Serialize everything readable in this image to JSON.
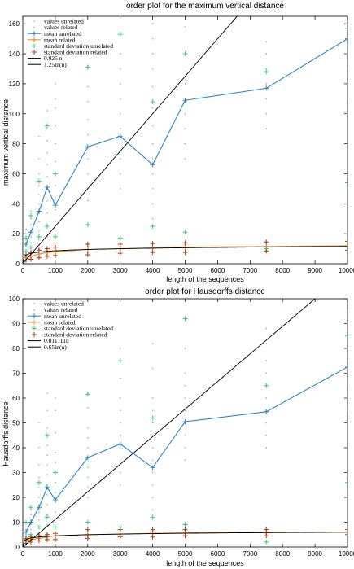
{
  "chart_data": [
    {
      "type": "line",
      "title": "order plot for the maximum vertical distance",
      "xlabel": "length of the sequences",
      "ylabel": "maximum vertical distance",
      "xlim": [
        0,
        10000
      ],
      "ylim": [
        0,
        165
      ],
      "xticks": [
        0,
        1000,
        2000,
        3000,
        4000,
        5000,
        6000,
        7000,
        8000,
        9000,
        10000
      ],
      "yticks": [
        0,
        20,
        40,
        60,
        80,
        100,
        120,
        140,
        160
      ],
      "x": [
        100,
        250,
        500,
        750,
        1000,
        2000,
        3000,
        4000,
        5000,
        7500,
        10000
      ],
      "series": [
        {
          "name": "values unrelated",
          "kind": "dots",
          "color": "#9ab8d0",
          "values": [
            [
              3,
              6,
              9,
              12,
              14,
              16,
              18,
              20,
              23
            ],
            [
              6,
              10,
              14,
              18,
              22,
              26,
              30,
              35
            ],
            [
              10,
              16,
              22,
              28,
              34,
              40,
              46,
              52,
              60,
              70,
              85
            ],
            [
              18,
              26,
              34,
              42,
              50,
              58,
              66,
              74,
              82,
              90,
              102
            ],
            [
              20,
              28,
              36,
              44,
              52,
              60,
              68,
              80,
              92,
              104,
              110,
              120,
              130,
              140,
              150
            ],
            [
              42,
              50,
              60,
              70,
              78,
              86,
              96,
              108,
              118,
              132,
              145
            ],
            [
              50,
              60,
              70,
              80,
              90,
              100,
              110,
              120,
              130,
              140
            ],
            [
              30,
              40,
              50,
              60,
              70,
              80,
              92,
              104,
              118,
              130,
              140,
              150,
              160
            ],
            [
              70,
              80,
              90,
              100,
              110,
              120,
              128,
              158
            ],
            [
              90,
              100,
              110,
              120,
              130,
              140,
              148
            ],
            [
              100,
              110,
              120,
              130,
              140,
              150,
              158,
              163
            ]
          ]
        },
        {
          "name": "values related",
          "kind": "dots",
          "color": "#c9a27a",
          "values": [
            [
              2,
              3,
              4,
              5,
              6
            ],
            [
              3,
              4,
              5,
              6,
              7,
              8
            ],
            [
              4,
              5,
              6,
              7,
              8,
              9,
              10
            ],
            [
              5,
              6,
              7,
              8,
              9,
              10,
              11
            ],
            [
              6,
              7,
              8,
              9,
              10,
              11,
              12
            ],
            [
              7,
              8,
              9,
              10,
              11,
              12,
              13
            ],
            [
              7,
              8,
              9,
              10,
              11,
              12,
              13
            ],
            [
              8,
              9,
              10,
              11,
              12,
              13,
              14
            ],
            [
              8,
              9,
              10,
              11,
              12,
              13,
              14
            ],
            [
              8,
              9,
              10,
              11,
              12,
              13,
              14,
              15
            ],
            [
              9,
              10,
              11,
              12,
              13,
              14
            ]
          ]
        },
        {
          "name": "mean unrelated",
          "kind": "line",
          "color": "#2a88c8",
          "values": [
            13,
            21,
            35,
            51,
            39,
            78,
            85,
            66,
            109,
            117,
            150
          ]
        },
        {
          "name": "mean related",
          "kind": "line",
          "color": "#e8902a",
          "values": [
            4,
            5,
            6.5,
            7.5,
            8,
            9.5,
            10,
            10.5,
            11,
            11.5,
            12
          ]
        },
        {
          "name": "standard deviation unrelated",
          "kind": "plus",
          "color": "#2ed17a",
          "values": [
            [
              8,
              17
            ],
            [
              11,
              32
            ],
            [
              18,
              55
            ],
            [
              25,
              92
            ],
            [
              18,
              60
            ],
            [
              26,
              131
            ],
            [
              17,
              153
            ],
            [
              25,
              108
            ],
            [
              21,
              140
            ],
            [
              10,
              128
            ],
            [
              54,
              157
            ]
          ]
        },
        {
          "name": "standard deviation related",
          "kind": "plus",
          "color": "#b03a1a",
          "values": [
            [
              2.5,
              6
            ],
            [
              3,
              7.5
            ],
            [
              4,
              9
            ],
            [
              5,
              10
            ],
            [
              5.5,
              11
            ],
            [
              6,
              13
            ],
            [
              7,
              13
            ],
            [
              7.5,
              13.5
            ],
            [
              7.5,
              14
            ],
            [
              8.5,
              14.5
            ],
            [
              9,
              15
            ]
          ]
        },
        {
          "name": "0.025 n",
          "kind": "fn",
          "color": "#000000",
          "a": 0.025,
          "f": "linear"
        },
        {
          "name": "1.25ln(n)",
          "kind": "fn",
          "color": "#000000",
          "a": 1.25,
          "f": "log"
        }
      ]
    },
    {
      "type": "line",
      "title": "order plot for Hausdorffs distance",
      "xlabel": "length of the sequences",
      "ylabel": "Hausdorffs distance",
      "xlim": [
        0,
        10000
      ],
      "ylim": [
        0,
        100
      ],
      "xticks": [
        0,
        1000,
        2000,
        3000,
        4000,
        5000,
        6000,
        7000,
        8000,
        9000,
        10000
      ],
      "yticks": [
        0,
        10,
        20,
        30,
        40,
        50,
        60,
        70,
        80,
        90,
        100
      ],
      "x": [
        100,
        250,
        500,
        750,
        1000,
        2000,
        3000,
        4000,
        5000,
        7500,
        10000
      ],
      "series": [
        {
          "name": "values unrelated",
          "kind": "dots",
          "color": "#9ab8d0",
          "values": [
            [
              2,
              3,
              4,
              5,
              6,
              7,
              8
            ],
            [
              3,
              5,
              7,
              9,
              11,
              13,
              15
            ],
            [
              5,
              8,
              11,
              14,
              17,
              20,
              24,
              28,
              33,
              40,
              50
            ],
            [
              9,
              13,
              17,
              21,
              25,
              29,
              33,
              37,
              41,
              48,
              55,
              62
            ],
            [
              10,
              14,
              18,
              22,
              26,
              30,
              34,
              38,
              46,
              55,
              60
            ],
            [
              20,
              24,
              28,
              32,
              36,
              40,
              44,
              48,
              56,
              62
            ],
            [
              25,
              30,
              35,
              40,
              45,
              50,
              55,
              60,
              68,
              75,
              80
            ],
            [
              15,
              20,
              25,
              30,
              35,
              40,
              45,
              50,
              55,
              60,
              72,
              82
            ],
            [
              35,
              40,
              45,
              50,
              55,
              60,
              65,
              70,
              80,
              92
            ],
            [
              40,
              45,
              50,
              55,
              60,
              65,
              70,
              75,
              82,
              88
            ],
            [
              50,
              55,
              60,
              65,
              70,
              75,
              80,
              85,
              90,
              95,
              98
            ]
          ]
        },
        {
          "name": "values related",
          "kind": "dots",
          "color": "#c9a27a",
          "values": [
            [
              1.5,
              2,
              2.5,
              3,
              3.5
            ],
            [
              2,
              2.5,
              3,
              3.5,
              4,
              4.5
            ],
            [
              2.5,
              3,
              3.5,
              4,
              4.5,
              5
            ],
            [
              3,
              3.5,
              4,
              4.5,
              5,
              5.5
            ],
            [
              3,
              3.5,
              4,
              4.5,
              5,
              5.5,
              6
            ],
            [
              3.5,
              4,
              4.5,
              5,
              5.5,
              6,
              6.5
            ],
            [
              4,
              4.5,
              5,
              5.5,
              6,
              6.5,
              7
            ],
            [
              4,
              4.5,
              5,
              5.5,
              6,
              6.5,
              7
            ],
            [
              4.5,
              5,
              5.5,
              6,
              6.5,
              7,
              7.5
            ],
            [
              4.5,
              5,
              5.5,
              6,
              6.5,
              7,
              7.5
            ],
            [
              5,
              5.5,
              6,
              6.5,
              7,
              7.5
            ]
          ]
        },
        {
          "name": "mean unrelated",
          "kind": "line",
          "color": "#2a88c8",
          "values": [
            6,
            10,
            16,
            24,
            19,
            36,
            41.5,
            32,
            50.5,
            54.5,
            72.5
          ]
        },
        {
          "name": "mean related",
          "kind": "line",
          "color": "#e8902a",
          "values": [
            2.5,
            3,
            3.5,
            4,
            4.5,
            5,
            5.2,
            5.5,
            5.7,
            5.8,
            6
          ]
        },
        {
          "name": "standard deviation unrelated",
          "kind": "plus",
          "color": "#2ed17a",
          "values": [
            [
              3,
              10
            ],
            [
              5,
              16
            ],
            [
              8,
              26
            ],
            [
              12,
              45
            ],
            [
              8,
              30
            ],
            [
              10,
              61.5
            ],
            [
              8,
              75
            ],
            [
              12,
              52
            ],
            [
              9,
              92
            ],
            [
              2,
              65
            ],
            [
              26,
              85
            ]
          ]
        },
        {
          "name": "standard deviation related",
          "kind": "plus",
          "color": "#b03a1a",
          "values": [
            [
              1.5,
              3.5
            ],
            [
              2,
              4
            ],
            [
              2.5,
              4.5
            ],
            [
              3,
              5
            ],
            [
              3,
              5.5
            ],
            [
              3.5,
              7
            ],
            [
              4,
              7
            ],
            [
              4,
              7
            ],
            [
              4.5,
              7
            ],
            [
              4.5,
              7
            ],
            [
              5,
              7
            ]
          ]
        },
        {
          "name": "0.011111n",
          "kind": "fn",
          "color": "#000000",
          "a": 0.011111,
          "f": "linear"
        },
        {
          "name": "0.65ln(n)",
          "kind": "fn",
          "color": "#000000",
          "a": 0.65,
          "f": "log"
        }
      ]
    }
  ]
}
